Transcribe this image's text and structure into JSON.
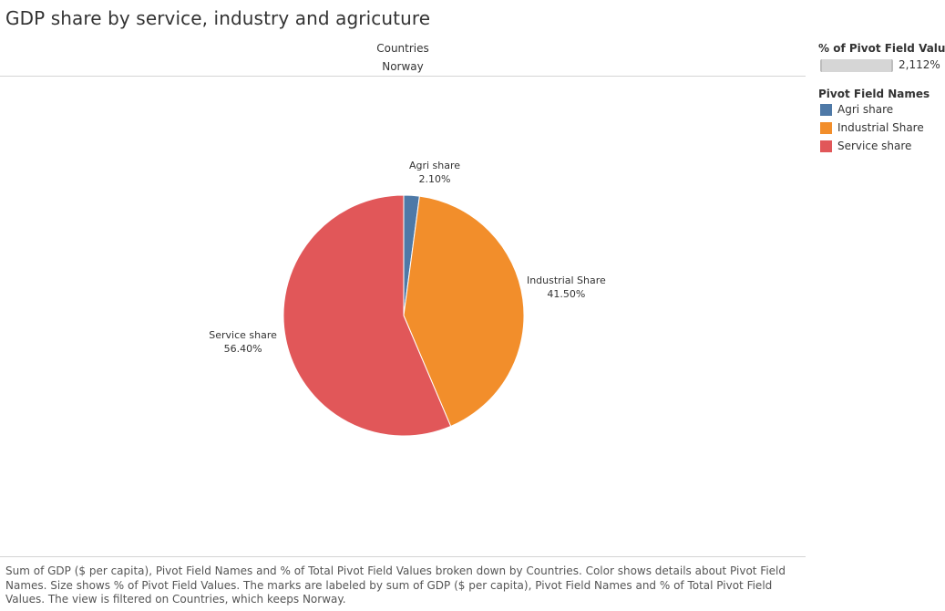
{
  "title": "GDP share by service, industry and agricuture",
  "column_header": {
    "field": "Countries",
    "value": "Norway"
  },
  "legend_size": {
    "title": "% of Pivot Field Values",
    "value_label": "2,112%"
  },
  "legend_color": {
    "title": "Pivot Field Names",
    "items": [
      {
        "label": "Agri share",
        "color": "#4e79a7"
      },
      {
        "label": "Industrial Share",
        "color": "#f28e2b"
      },
      {
        "label": "Service share",
        "color": "#e15759"
      }
    ]
  },
  "chart_data": {
    "type": "pie",
    "slices": [
      {
        "name": "Agri share",
        "value": 2.1,
        "label": "2.10%",
        "color": "#4e79a7"
      },
      {
        "name": "Industrial Share",
        "value": 41.5,
        "label": "41.50%",
        "color": "#f28e2b"
      },
      {
        "name": "Service share",
        "value": 56.4,
        "label": "56.40%",
        "color": "#e15759"
      }
    ]
  },
  "footer": {
    "caption": "Sum of GDP ($ per capita), Pivot Field Names and % of Total Pivot Field Values broken down by Countries.  Color shows details about Pivot Field Names.  Size shows % of Pivot Field Values.  The marks are labeled by sum of GDP ($ per capita), Pivot Field Names and % of Total Pivot Field Values. The view is filtered on Countries, which keeps Norway."
  }
}
